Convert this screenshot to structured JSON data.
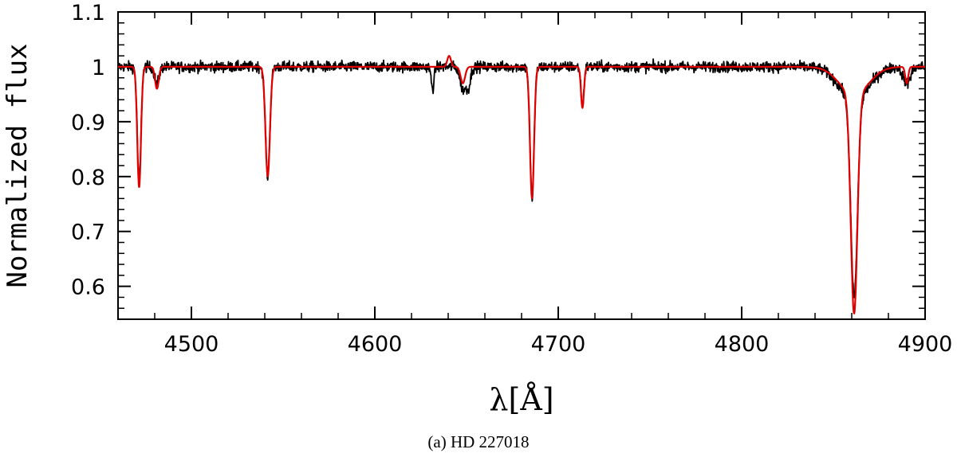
{
  "caption": "(a)  HD 227018",
  "chart_data": {
    "type": "line",
    "title": "",
    "xlabel": "λ[Å]",
    "ylabel": "Normalized flux",
    "xlim": [
      4460,
      4900
    ],
    "ylim": [
      0.54,
      1.1
    ],
    "xticks": [
      4500,
      4600,
      4700,
      4800,
      4900
    ],
    "xtick_labels": [
      "4500",
      "4600",
      "4700",
      "4800",
      "4900"
    ],
    "yticks": [
      0.6,
      0.7,
      0.8,
      0.9,
      1,
      1.1
    ],
    "ytick_labels": [
      "0.6",
      "0.7",
      "0.8",
      "0.9",
      "1",
      "1.1"
    ],
    "continuum": 1.0,
    "series": [
      {
        "color": "#000000",
        "noise": 0.008,
        "lines": [
          {
            "center": 4471.5,
            "depth": 0.21,
            "width": 1.0
          },
          {
            "center": 4481.2,
            "depth": 0.03,
            "width": 1.2
          },
          {
            "center": 4541.6,
            "depth": 0.2,
            "width": 1.2
          },
          {
            "center": 4631.5,
            "depth": 0.04,
            "width": 0.8
          },
          {
            "center": 4648.0,
            "depth": 0.04,
            "width": 1.5
          },
          {
            "center": 4651.0,
            "depth": 0.035,
            "width": 1.2
          },
          {
            "center": 4685.7,
            "depth": 0.24,
            "width": 1.1
          },
          {
            "center": 4713.2,
            "depth": 0.07,
            "width": 0.8
          },
          {
            "center": 4861.3,
            "depth": 0.36,
            "width": 1.8
          },
          {
            "center": 4861.3,
            "depth": 0.06,
            "width": 8.0
          },
          {
            "center": 4890.0,
            "depth": 0.03,
            "width": 2.0
          }
        ]
      },
      {
        "color": "#e00000",
        "noise": 0.0,
        "lines": [
          {
            "center": 4471.5,
            "depth": 0.22,
            "width": 1.0
          },
          {
            "center": 4481.2,
            "depth": 0.04,
            "width": 1.0
          },
          {
            "center": 4541.6,
            "depth": 0.2,
            "width": 1.2
          },
          {
            "center": 4640.5,
            "depth": -0.02,
            "width": 1.0
          },
          {
            "center": 4648.0,
            "depth": 0.03,
            "width": 1.2
          },
          {
            "center": 4685.7,
            "depth": 0.24,
            "width": 1.1
          },
          {
            "center": 4713.2,
            "depth": 0.075,
            "width": 0.8
          },
          {
            "center": 4861.3,
            "depth": 0.4,
            "width": 1.8
          },
          {
            "center": 4861.3,
            "depth": 0.05,
            "width": 8.0
          },
          {
            "center": 4890.0,
            "depth": 0.03,
            "width": 0.8
          }
        ]
      }
    ]
  }
}
